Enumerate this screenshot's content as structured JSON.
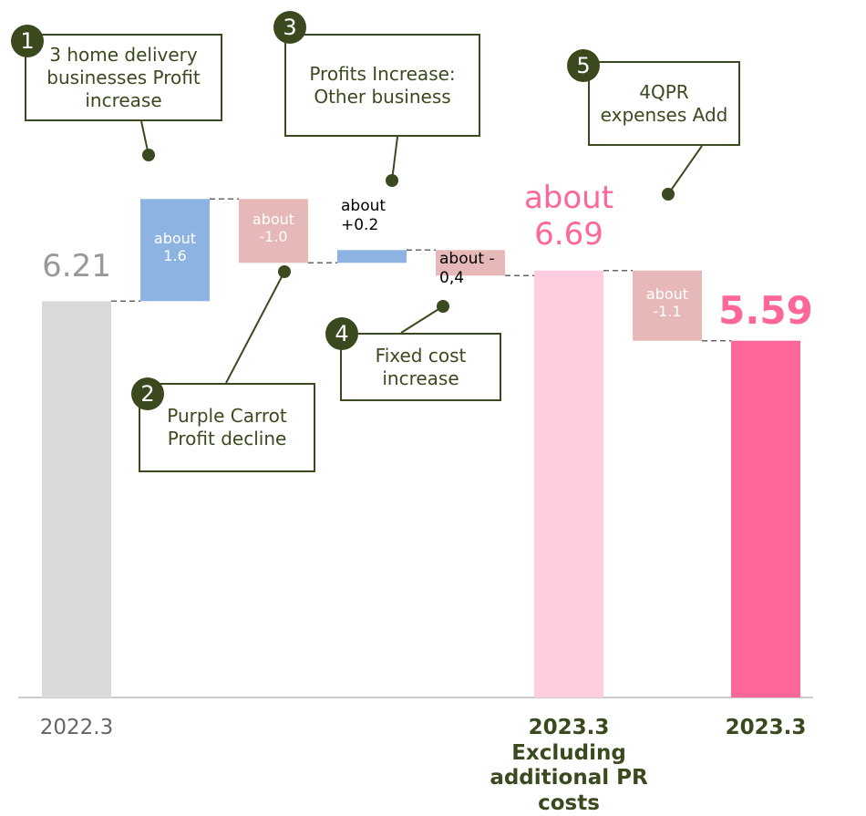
{
  "chart_data": {
    "type": "waterfall",
    "categories": [
      "2022.3",
      null,
      null,
      null,
      null,
      "2023.3 Excluding additional PR costs",
      null,
      "2023.3"
    ],
    "values": [
      6.21,
      1.6,
      -1.0,
      0.2,
      -0.4,
      6.69,
      -1.1,
      5.59
    ],
    "value_labels": [
      "6.21",
      "about 1.6",
      "about -1.0",
      "about +0.2",
      "about - 0,4",
      "about 6.69",
      "about -1.1",
      "5.59"
    ],
    "measure": [
      "absolute",
      "relative",
      "relative",
      "relative",
      "relative",
      "absolute",
      "relative",
      "absolute"
    ],
    "colors": [
      "#d9d9d9",
      "#8db3e2",
      "#e6b8b7",
      "#8db3e2",
      "#e6b8b7",
      "#ffcce0",
      "#e6b8b7",
      "#ff6699"
    ],
    "ylim": [
      0,
      7
    ],
    "annotations": [
      {
        "number": 1,
        "text": "3 home delivery businesses Profit increase"
      },
      {
        "number": 2,
        "text": "Purple Carrot Profit decline"
      },
      {
        "number": 3,
        "text": "Profits Increase: Other business"
      },
      {
        "number": 4,
        "text": "Fixed cost increase"
      },
      {
        "number": 5,
        "text": "4QPR expenses Add"
      }
    ]
  }
}
